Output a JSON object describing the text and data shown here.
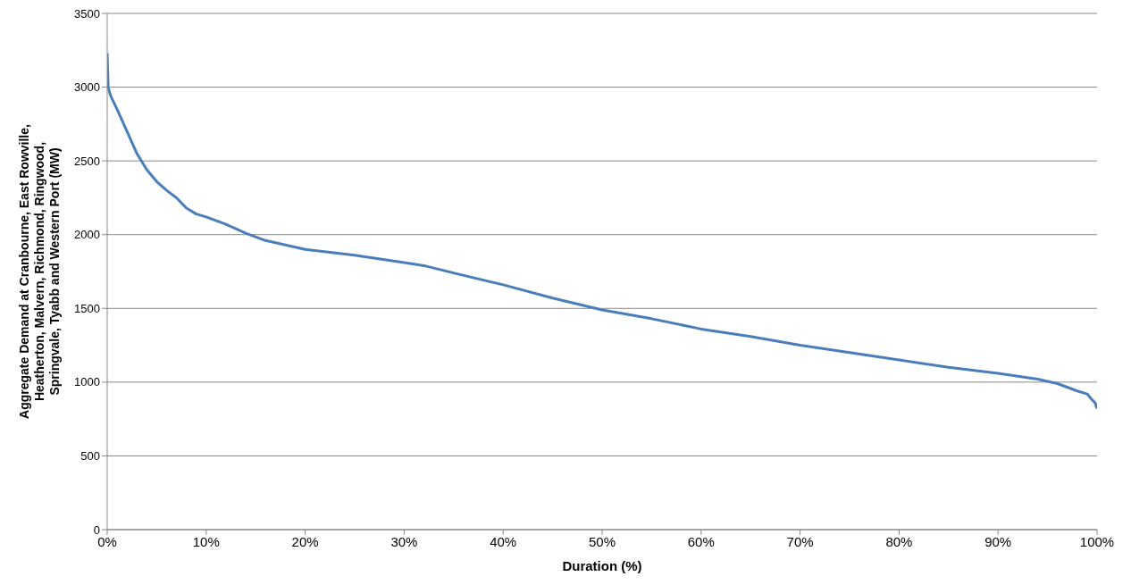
{
  "chart_data": {
    "type": "line",
    "xlabel": "Duration (%)",
    "ylabel": "Aggregate Demand at Cranbourne, East Rowville, Heatherton, Malvern, Richmond, Ringwood, Springvale, Tyabb and Western Port (MW)",
    "x": [
      0,
      0.1,
      0.3,
      0.5,
      1,
      2,
      3,
      4,
      5,
      6,
      7,
      8,
      9,
      10,
      12,
      14,
      16,
      18,
      20,
      25,
      30,
      32,
      35,
      40,
      45,
      50,
      55,
      60,
      65,
      70,
      75,
      80,
      85,
      90,
      94,
      96,
      98,
      99,
      99.5,
      99.8,
      100
    ],
    "series": [
      {
        "color": "#4a7ebb",
        "values": [
          3230,
          3000,
          2950,
          2920,
          2850,
          2700,
          2550,
          2440,
          2360,
          2300,
          2250,
          2180,
          2140,
          2120,
          2070,
          2010,
          1960,
          1930,
          1900,
          1860,
          1810,
          1790,
          1740,
          1660,
          1570,
          1490,
          1430,
          1360,
          1310,
          1250,
          1200,
          1150,
          1100,
          1060,
          1020,
          990,
          940,
          920,
          880,
          860,
          820
        ]
      }
    ],
    "xlim": [
      0,
      100
    ],
    "xticks": [
      {
        "value": 0,
        "label": "0%"
      },
      {
        "value": 10,
        "label": "10%"
      },
      {
        "value": 20,
        "label": "20%"
      },
      {
        "value": 30,
        "label": "30%"
      },
      {
        "value": 40,
        "label": "40%"
      },
      {
        "value": 50,
        "label": "50%"
      },
      {
        "value": 60,
        "label": "60%"
      },
      {
        "value": 70,
        "label": "70%"
      },
      {
        "value": 80,
        "label": "80%"
      },
      {
        "value": 90,
        "label": "90%"
      },
      {
        "value": 100,
        "label": "100%"
      }
    ],
    "ylim": [
      0,
      3500
    ],
    "yticks": [
      0,
      500,
      1000,
      1500,
      2000,
      2500,
      3000,
      3500
    ],
    "grid": "y",
    "legend": false,
    "marker": "none",
    "line_style": "solid"
  }
}
